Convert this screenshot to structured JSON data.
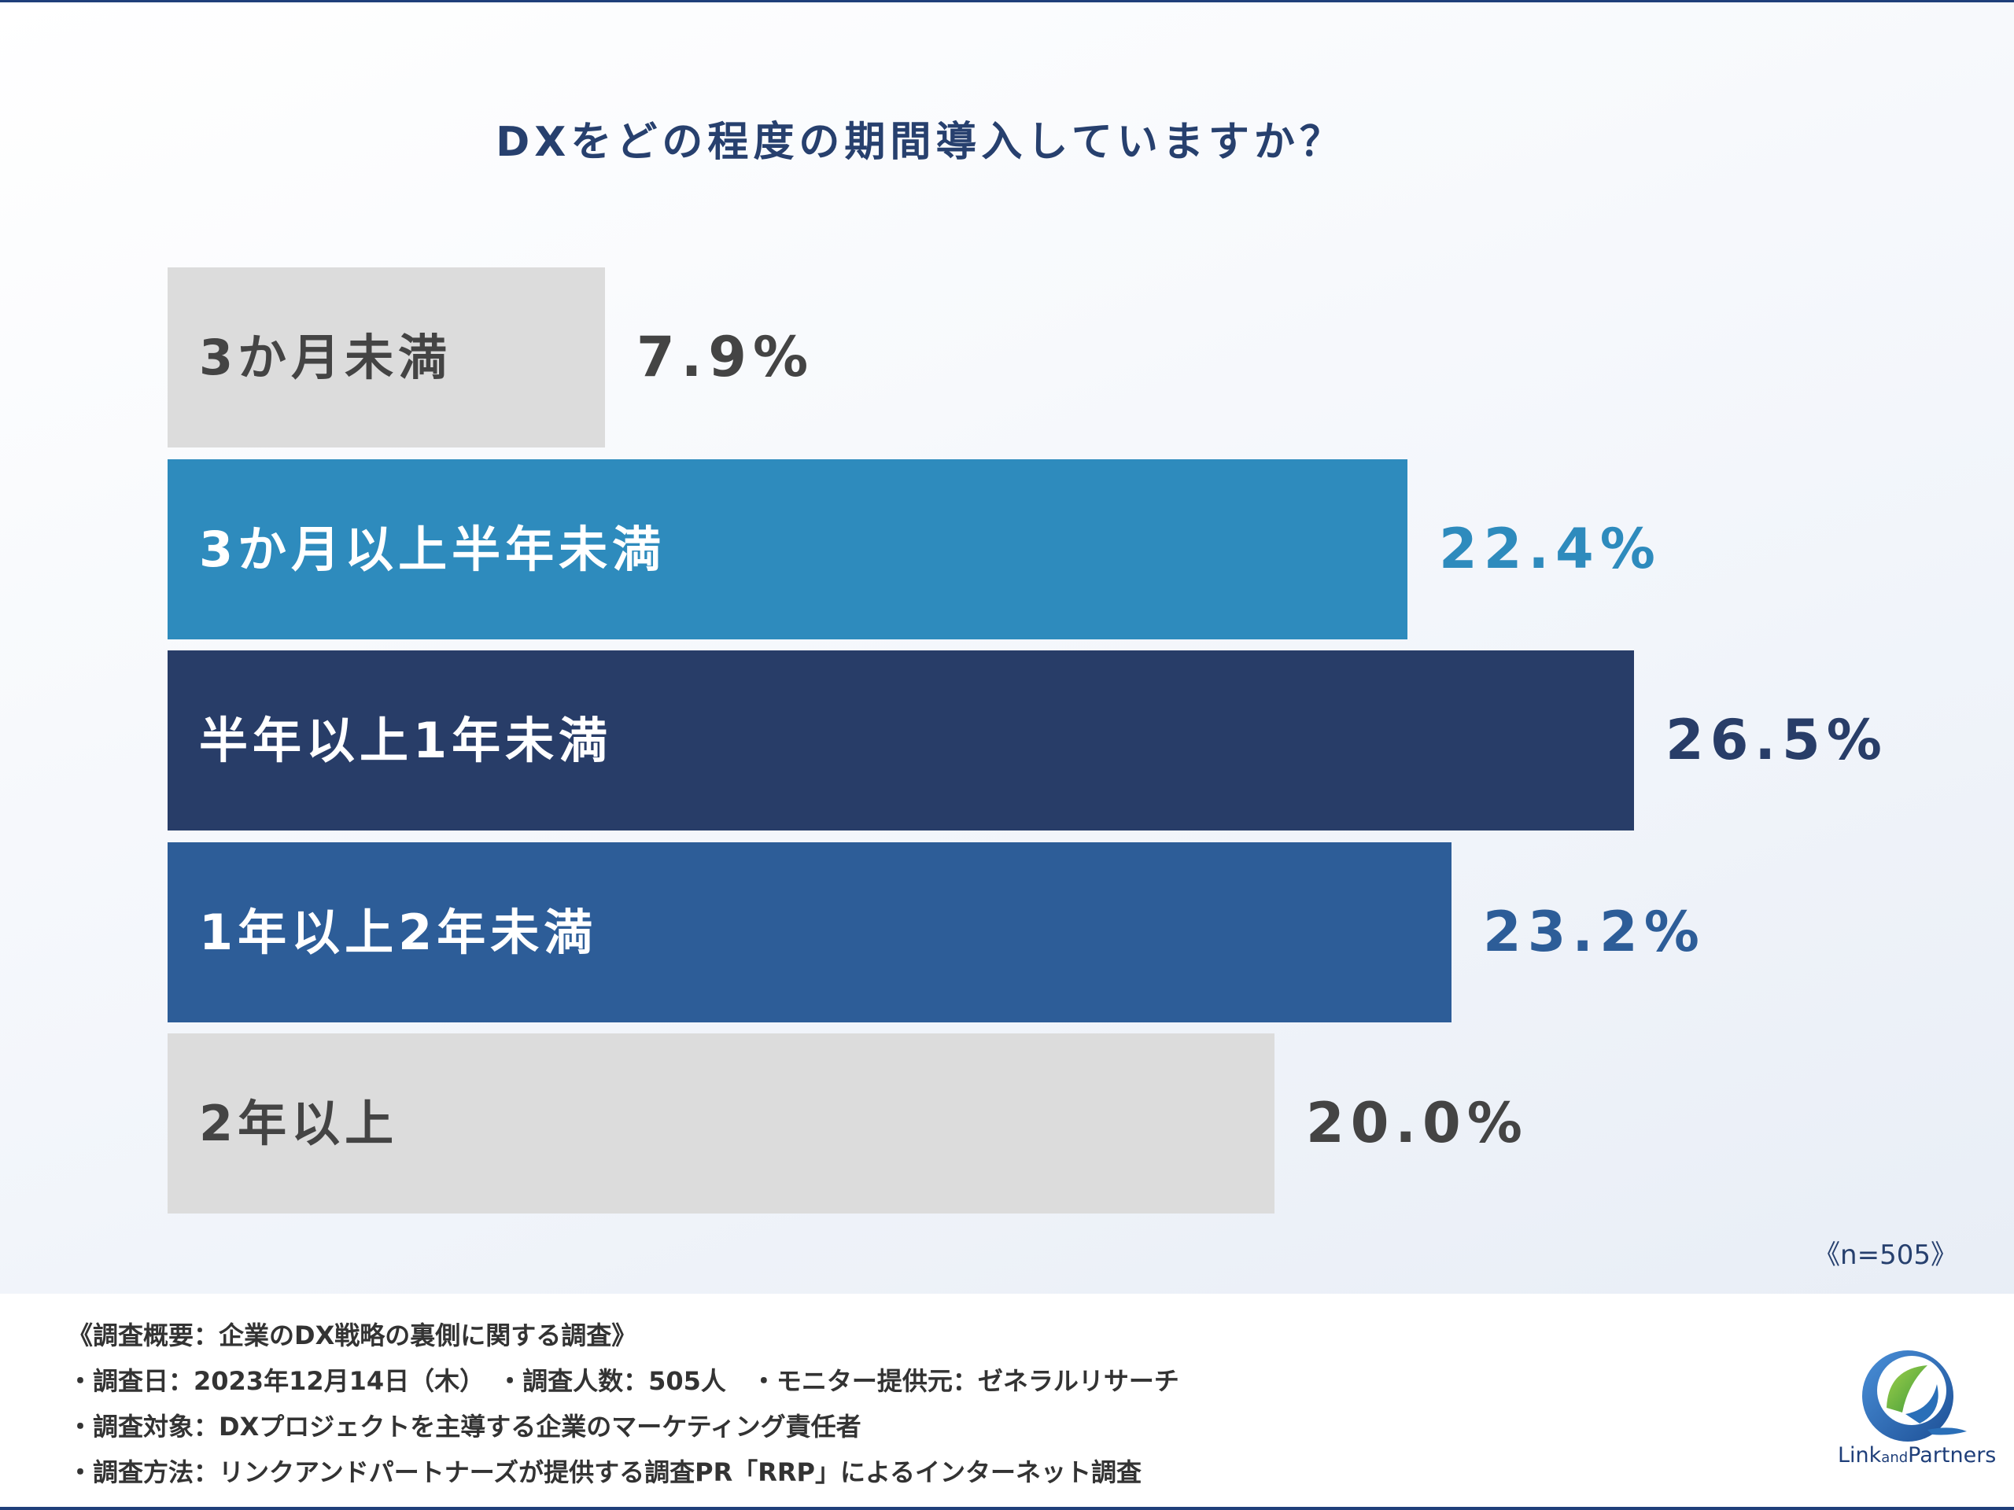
{
  "title": "DXをどの程度の期間導入していますか？",
  "chart_data": {
    "type": "bar",
    "orientation": "horizontal",
    "title": "DXをどの程度の期間導入していますか？",
    "categories": [
      "3か月未満",
      "3か月以上半年未満",
      "半年以上1年未満",
      "1年以上2年未満",
      "2年以上"
    ],
    "values": [
      7.9,
      22.4,
      26.5,
      23.2,
      20.0
    ],
    "value_labels": [
      "7.9%",
      "22.4%",
      "26.5%",
      "23.2%",
      "20.0%"
    ],
    "unit": "%",
    "colors": [
      "#dcdcdc",
      "#2e8bbd",
      "#283d68",
      "#2d5d98",
      "#dcdcdc"
    ],
    "label_colors": [
      "#444444",
      "#ffffff",
      "#ffffff",
      "#ffffff",
      "#444444"
    ],
    "value_colors": [
      "#444444",
      "#2e8bbd",
      "#283d68",
      "#2d5d98",
      "#444444"
    ],
    "grid": false,
    "legend": "none"
  },
  "sample_size": "《n=505》",
  "footer": {
    "line1": "《調査概要：企業のDX戦略の裏側に関する調査》",
    "line2": "・調査日：2023年12月14日（木）　・調査人数：505人　・モニター提供元：ゼネラルリサーチ",
    "line3": "・調査対象：DXプロジェクトを主導する企業のマーケティング責任者",
    "line4": "・調査方法：リンクアンドパートナーズが提供する調査PR「RRP」によるインターネット調査"
  },
  "logo": {
    "word1": "Link",
    "word2": "and",
    "word3": "Partners",
    "colors": {
      "green": "#7cbf3a",
      "blue": "#2a6fb8"
    }
  }
}
